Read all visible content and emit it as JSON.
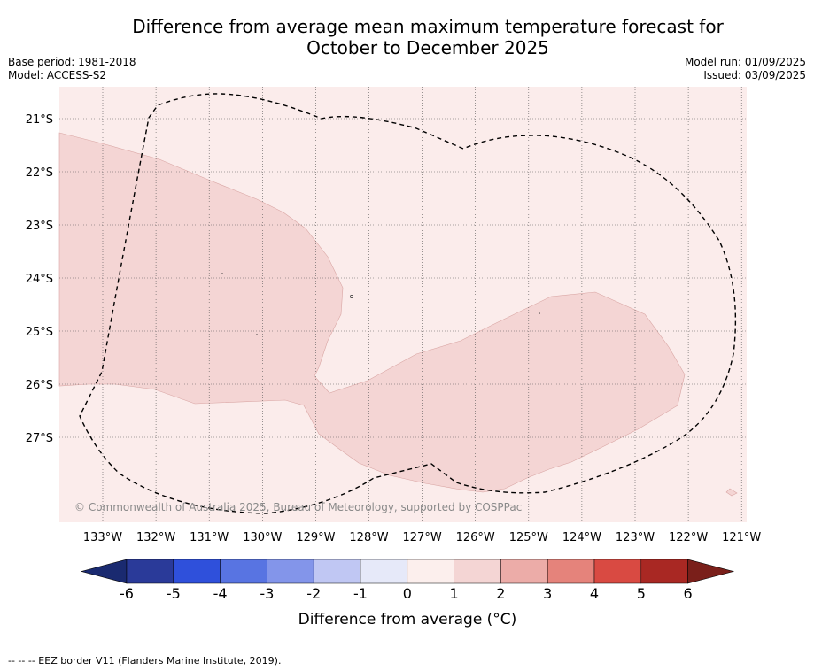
{
  "title_line1": "Difference from average mean maximum temperature forecast for",
  "title_line2": "October to December 2025",
  "meta_left": {
    "base_period": "Base period: 1981-2018",
    "model": "Model: ACCESS-S2"
  },
  "meta_right": {
    "model_run": "Model run: 01/09/2025",
    "issued": "Issued: 03/09/2025"
  },
  "map": {
    "longitudes": [
      "133°W",
      "132°W",
      "131°W",
      "130°W",
      "129°W",
      "128°W",
      "127°W",
      "126°W",
      "125°W",
      "124°W",
      "123°W",
      "122°W",
      "121°W"
    ],
    "latitudes": [
      "21°S",
      "22°S",
      "23°S",
      "24°S",
      "25°S",
      "26°S",
      "27°S"
    ],
    "copyright": "© Commonwealth of Australia 2025, Bureau of Meteorology, supported by COSPPac",
    "background_color": "#fbeceb",
    "anomaly_1_2_color": "#f4d5d4"
  },
  "colorbar": {
    "label": "Difference from average (°C)",
    "ticks": [
      "-6",
      "-5",
      "-4",
      "-3",
      "-2",
      "-1",
      "0",
      "1",
      "2",
      "3",
      "4",
      "5",
      "6"
    ],
    "colors": [
      "#2a3a99",
      "#2f50db",
      "#5874e2",
      "#8395ea",
      "#c0c7f3",
      "#e6e9f9",
      "#fcefed",
      "#f4d5d4",
      "#ecaca8",
      "#e5837b",
      "#d94a42",
      "#a92823"
    ],
    "under_color": "#1a2a70",
    "over_color": "#7a1f1a"
  },
  "footer": "--  --  -- EEZ border V11 (Flanders Marine Institute, 2019)."
}
